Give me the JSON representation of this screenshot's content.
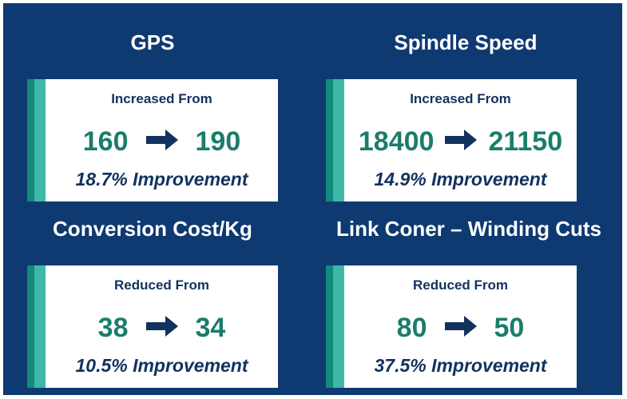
{
  "panels": [
    {
      "title": "GPS",
      "subtitle": "Increased From",
      "from": "160",
      "to": "190",
      "improvement": "18.7% Improvement"
    },
    {
      "title": "Spindle Speed",
      "subtitle": "Increased From",
      "from": "18400",
      "to": "21150",
      "improvement": "14.9% Improvement"
    },
    {
      "title": "Conversion Cost/Kg",
      "subtitle": "Reduced From",
      "from": "38",
      "to": "34",
      "improvement": "10.5% Improvement"
    },
    {
      "title": "Link Coner – Winding Cuts",
      "subtitle": "Reduced From",
      "from": "80",
      "to": "50",
      "improvement": "37.5% Improvement"
    }
  ],
  "colors": {
    "background": "#0e3a71",
    "card": "#ffffff",
    "value": "#1a7d6a",
    "text": "#12325f",
    "stripe_dark": "#138a7b",
    "stripe_light": "#3fb8aa"
  },
  "icons": {
    "arrow": "right-arrow-icon"
  }
}
